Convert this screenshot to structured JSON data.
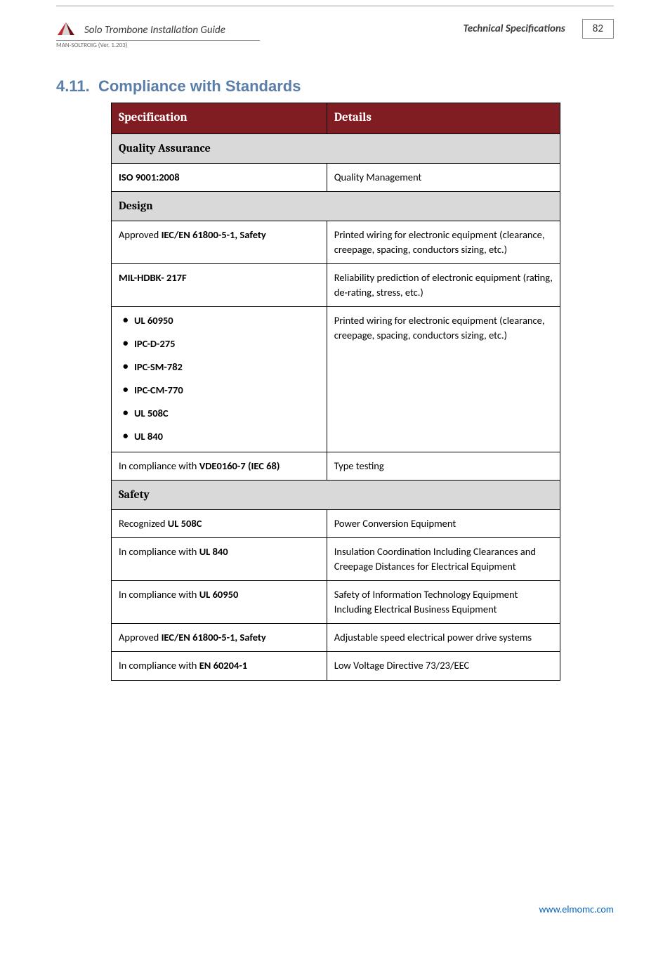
{
  "header": {
    "doc_title": "Solo Trombone Installation Guide",
    "section_label": "Technical Specifications",
    "page_number": "82",
    "version": "MAN-SOLTROIG (Ver. 1.203)"
  },
  "section": {
    "number": "4.11.",
    "title": "Compliance with Standards"
  },
  "table": {
    "header": {
      "col1": "Specification",
      "col2": "Details"
    },
    "groups": [
      {
        "heading": "Quality Assurance",
        "rows": [
          {
            "spec_b": "ISO 9001:2008",
            "details": "Quality Management"
          }
        ]
      },
      {
        "heading": "Design",
        "rows": [
          {
            "spec_a": "Approved ",
            "spec_b": "IEC/EN 61800-5-1, Safety",
            "details": "Printed wiring for electronic equipment (clearance, creepage, spacing, conductors sizing, etc.)"
          },
          {
            "spec_b": "MIL-HDBK- 217F",
            "details": "Reliability prediction of electronic equipment (rating, de-rating, stress, etc.)"
          },
          {
            "list": [
              "UL 60950",
              "IPC-D-275",
              "IPC-SM-782",
              "IPC-CM-770",
              "UL 508C",
              "UL 840"
            ],
            "details": "Printed wiring for electronic equipment (clearance, creepage, spacing, conductors sizing, etc.)"
          },
          {
            "spec_a": "In compliance with ",
            "spec_b": "VDE0160-7 (IEC 68)",
            "details": "Type testing"
          }
        ]
      },
      {
        "heading": "Safety",
        "rows": [
          {
            "spec_a": "Recognized ",
            "spec_b": "UL 508C",
            "details": "Power Conversion Equipment"
          },
          {
            "spec_a": "In compliance with ",
            "spec_b": "UL 840",
            "details": "Insulation Coordination Including Clearances and Creepage Distances for Electrical Equipment"
          },
          {
            "spec_a": "In compliance with ",
            "spec_b": "UL 60950",
            "details": "Safety of Information Technology Equipment Including Electrical Business Equipment"
          },
          {
            "spec_a": "Approved ",
            "spec_b": "IEC/EN 61800-5-1, Safety",
            "details": "Adjustable speed electrical power drive systems"
          },
          {
            "spec_a": "In compliance with ",
            "spec_b": "EN 60204-1",
            "details": "Low Voltage Directive 73/23/EEC"
          }
        ]
      }
    ]
  },
  "footer": {
    "link": "www.elmomc.com"
  },
  "colors": {
    "heading": "#5b7ea8",
    "table_header_bg": "#7f1d23",
    "table_header_fg": "#ffffff",
    "subheader_bg": "#d9d9d9",
    "link": "#0563c1"
  }
}
